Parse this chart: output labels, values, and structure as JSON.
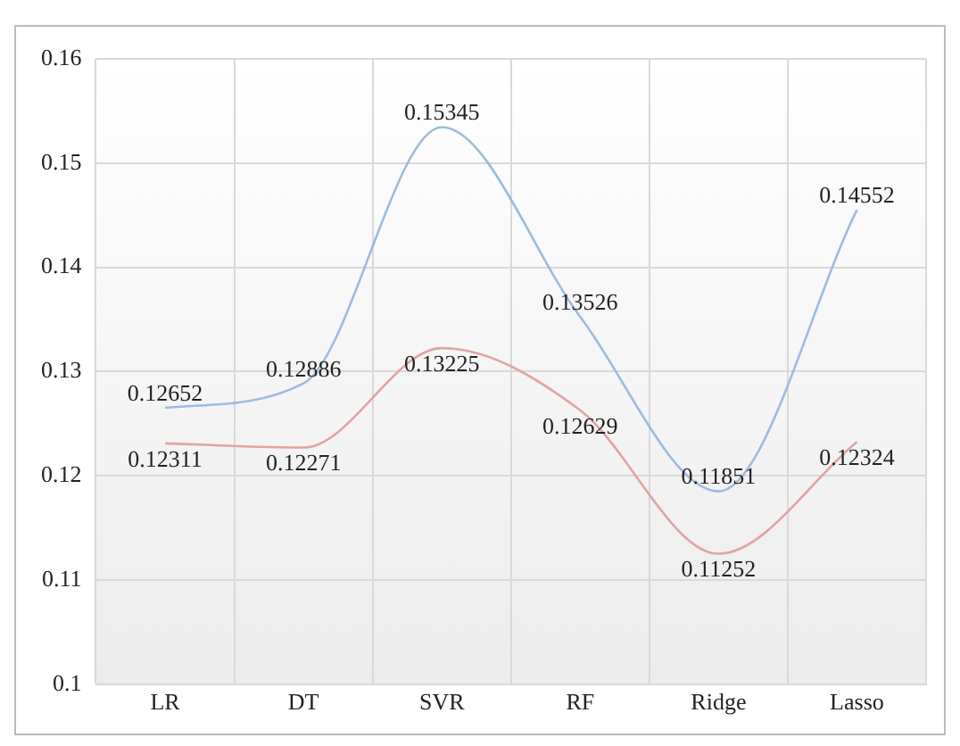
{
  "chart_data": {
    "type": "line",
    "categories": [
      "LR",
      "DT",
      "SVR",
      "RF",
      "Ridge",
      "Lasso"
    ],
    "series": [
      {
        "color": "#9dbbe0",
        "values": [
          0.12652,
          0.12886,
          0.15345,
          0.13526,
          0.11851,
          0.14552
        ]
      },
      {
        "color": "#e3a3a3",
        "values": [
          0.12311,
          0.12271,
          0.13225,
          0.12629,
          0.11252,
          0.12324
        ]
      }
    ],
    "ylim": [
      0.1,
      0.16
    ],
    "yticks": [
      0.1,
      0.11,
      0.12,
      0.13,
      0.14,
      0.15,
      0.16
    ],
    "grid": true,
    "legend": false,
    "marker": "none",
    "line_style": "solid",
    "data_labels": true
  }
}
